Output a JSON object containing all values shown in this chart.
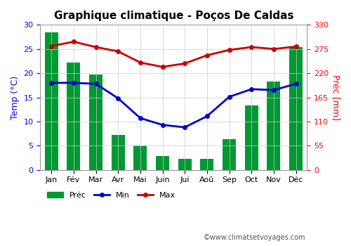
{
  "title": "Graphique climatique - Poços De Caldas",
  "months": [
    "Jan",
    "Fév",
    "Mar",
    "Avr",
    "Mai",
    "Juin",
    "Jui",
    "Aoû",
    "Sep",
    "Oct",
    "Nov",
    "Déc"
  ],
  "prec_mm": [
    313,
    244,
    217,
    80,
    55,
    32,
    25,
    25,
    70,
    146,
    201,
    280
  ],
  "temp_min": [
    18.0,
    18.0,
    17.8,
    14.8,
    10.7,
    9.3,
    8.8,
    11.1,
    15.1,
    16.7,
    16.5,
    17.8
  ],
  "temp_max": [
    25.6,
    26.5,
    25.4,
    24.5,
    22.2,
    21.3,
    22.0,
    23.7,
    24.8,
    25.4,
    25.0,
    25.5
  ],
  "bar_color": "#009933",
  "line_min_color": "#0000cc",
  "line_max_color": "#cc0000",
  "left_ylim": [
    0,
    30
  ],
  "right_ylim": [
    0,
    330
  ],
  "left_yticks": [
    0,
    5,
    10,
    15,
    20,
    25,
    30
  ],
  "right_yticks": [
    0,
    55,
    110,
    165,
    220,
    275,
    330
  ],
  "ylabel_left": "Temp (°C)",
  "ylabel_right": "Préc [mm]",
  "watermark": "©www.climatsetvoyages.com",
  "bg_color": "#ffffff",
  "grid_color": "#cccccc",
  "legend_prec": "Préc",
  "legend_min": "Min",
  "legend_max": "Max",
  "title_fontsize": 11,
  "axis_fontsize": 8,
  "label_fontsize": 9
}
